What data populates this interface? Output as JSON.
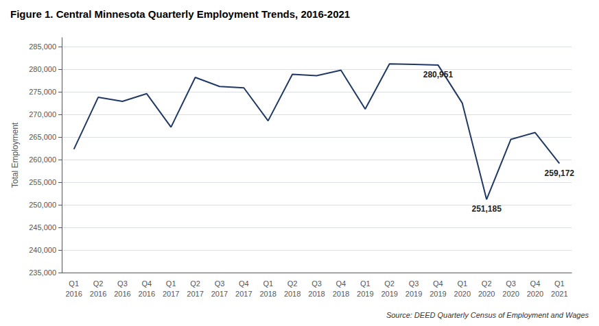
{
  "chart_data": {
    "type": "line",
    "title": "Figure 1. Central Minnesota Quarterly Employment Trends, 2016-2021",
    "ylabel": "Total Employment",
    "source": "Source: DEED Quarterly Census of Employment and Wages",
    "categories": [
      "Q1\n2016",
      "Q2\n2016",
      "Q3\n2016",
      "Q4\n2016",
      "Q1\n2017",
      "Q2\n2017",
      "Q3\n2017",
      "Q4\n2017",
      "Q1\n2018",
      "Q2\n2018",
      "Q3\n2018",
      "Q4\n2018",
      "Q1\n2019",
      "Q2\n2019",
      "Q3\n2019",
      "Q4\n2019",
      "Q1\n2020",
      "Q2\n2020",
      "Q3\n2020",
      "Q4\n2020",
      "Q1\n2021"
    ],
    "values": [
      262300,
      273800,
      272900,
      274600,
      267200,
      278200,
      276200,
      275900,
      268600,
      278900,
      278600,
      279800,
      271200,
      281200,
      281100,
      280951,
      272500,
      251185,
      264500,
      266000,
      259172
    ],
    "color": "#1f3864",
    "ylim": [
      235000,
      287000
    ],
    "yticks": [
      {
        "value": 235000,
        "label": "235,000"
      },
      {
        "value": 240000,
        "label": "240,000"
      },
      {
        "value": 245000,
        "label": "245,000"
      },
      {
        "value": 250000,
        "label": "250,000"
      },
      {
        "value": 255000,
        "label": "255,000"
      },
      {
        "value": 260000,
        "label": "260,000"
      },
      {
        "value": 265000,
        "label": "265,000"
      },
      {
        "value": 270000,
        "label": "270,000"
      },
      {
        "value": 275000,
        "label": "275,000"
      },
      {
        "value": 280000,
        "label": "280,000"
      },
      {
        "value": 285000,
        "label": "285,000"
      }
    ],
    "grid": true,
    "annotations": [
      {
        "x": "Q4\n2019",
        "y": 280951,
        "text": "280,951"
      },
      {
        "x": "Q2\n2020",
        "y": 251185,
        "text": "251,185"
      },
      {
        "x": "Q1\n2021",
        "y": 259172,
        "text": "259,172"
      }
    ]
  }
}
